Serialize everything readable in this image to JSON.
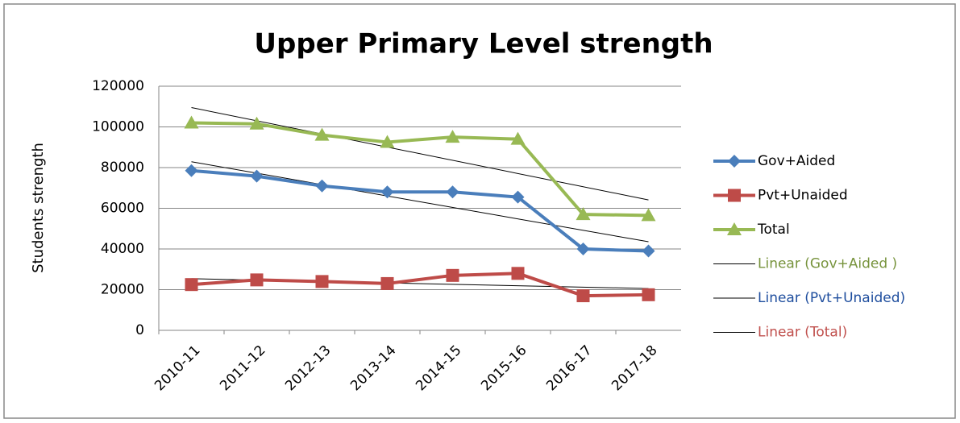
{
  "chart_data": {
    "type": "line",
    "title": "Upper Primary Level strength",
    "y_label": "Students strength",
    "categories": [
      "2010-11",
      "2011-12",
      "2012-13",
      "2013-14",
      "2014-15",
      "2015-16",
      "2016-17",
      "2017-18"
    ],
    "series": [
      {
        "name": "Gov+Aided",
        "color": "#4a7ebb",
        "marker": "diamond",
        "values": [
          78500,
          75800,
          71000,
          68000,
          68000,
          65500,
          40000,
          39000
        ]
      },
      {
        "name": "Pvt+Unaided",
        "color": "#be4b48",
        "marker": "square",
        "values": [
          22500,
          24800,
          24000,
          23000,
          27000,
          28000,
          17000,
          17500
        ]
      },
      {
        "name": "Total",
        "color": "#98b954",
        "marker": "triangle",
        "values": [
          102000,
          101500,
          96000,
          92500,
          95000,
          94000,
          57000,
          56500
        ]
      }
    ],
    "trendlines": [
      {
        "name": "Linear (Gov+Aided )",
        "color": "#000000",
        "label_color": "#77933c"
      },
      {
        "name": "Linear (Pvt+Unaided)",
        "color": "#000000",
        "label_color": "#1f4e9e"
      },
      {
        "name": "Linear (Total)",
        "color": "#000000",
        "label_color": "#c0504d"
      }
    ],
    "ylim": [
      0,
      120000
    ],
    "yticks": [
      0,
      20000,
      40000,
      60000,
      80000,
      100000,
      120000
    ],
    "grid": true,
    "legend": "right"
  }
}
